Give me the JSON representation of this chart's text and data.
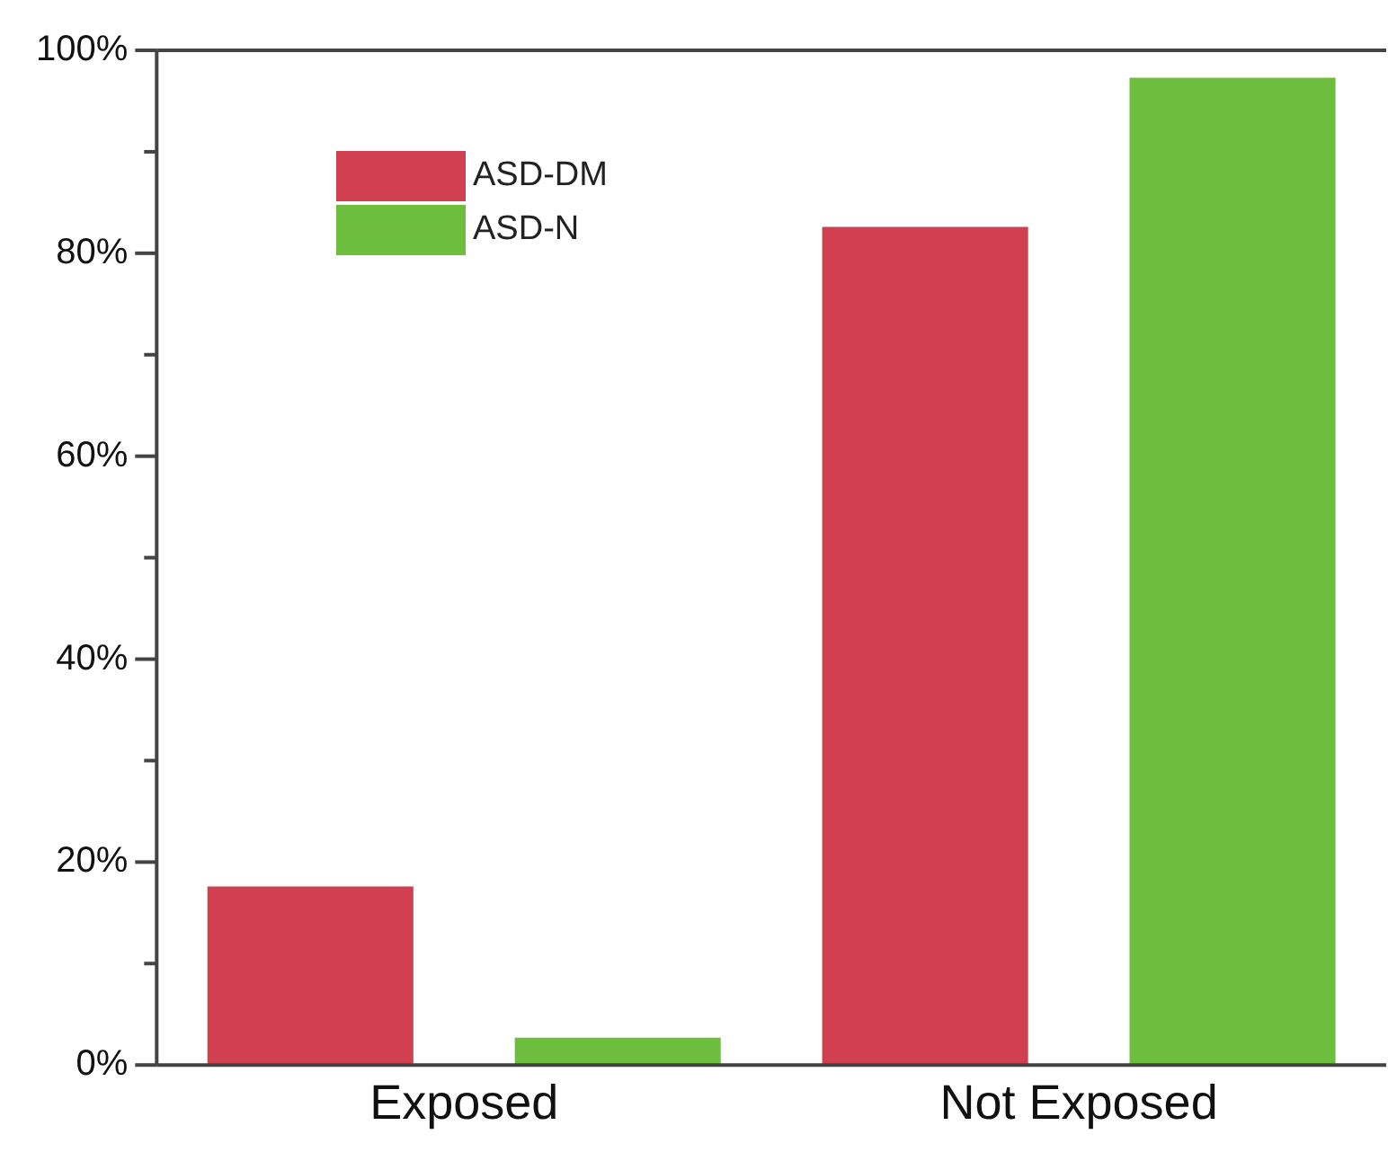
{
  "chart_data": {
    "type": "bar",
    "categories": [
      "Exposed",
      "Not Exposed"
    ],
    "series": [
      {
        "name": "ASD-DM",
        "color": "#d04050",
        "values": [
          17.6,
          82.6
        ]
      },
      {
        "name": "ASD-N",
        "color": "#6cbe3c",
        "values": [
          2.7,
          97.3
        ]
      }
    ],
    "ylim": [
      0,
      100
    ],
    "yticks": [
      {
        "value": 0,
        "label": "0%"
      },
      {
        "value": 10,
        "label": null
      },
      {
        "value": 20,
        "label": "20%"
      },
      {
        "value": 30,
        "label": null
      },
      {
        "value": 40,
        "label": "40%"
      },
      {
        "value": 50,
        "label": null
      },
      {
        "value": 60,
        "label": "60%"
      },
      {
        "value": 70,
        "label": null
      },
      {
        "value": 80,
        "label": "80%"
      },
      {
        "value": 90,
        "label": null
      },
      {
        "value": 100,
        "label": "100%"
      }
    ],
    "grid": false,
    "legend": "top left"
  }
}
